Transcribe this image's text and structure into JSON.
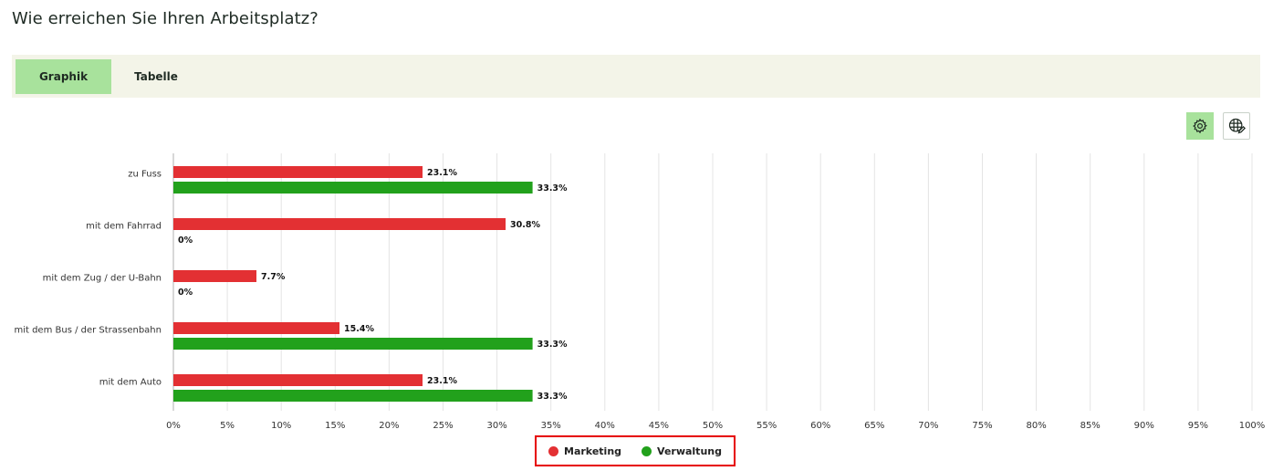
{
  "page": {
    "title": "Wie erreichen Sie Ihren Arbeitsplatz?"
  },
  "tabs": [
    {
      "label": "Graphik",
      "active": true
    },
    {
      "label": "Tabelle",
      "active": false
    }
  ],
  "toolbar": {
    "settings_icon": "gear-icon",
    "table_edit_icon": "table-edit-icon"
  },
  "chart_data": {
    "type": "bar",
    "orientation": "horizontal",
    "categories": [
      "zu Fuss",
      "mit dem Fahrrad",
      "mit dem Zug / der U-Bahn",
      "mit dem Bus / der Strassenbahn",
      "mit dem Auto"
    ],
    "series": [
      {
        "name": "Marketing",
        "color": "#e33033",
        "values": [
          23.1,
          30.8,
          7.7,
          15.4,
          23.1
        ]
      },
      {
        "name": "Verwaltung",
        "color": "#22a11c",
        "values": [
          33.3,
          0,
          0,
          33.3,
          33.3
        ]
      }
    ],
    "xlim": [
      0,
      100
    ],
    "xticks": [
      "0%",
      "5%",
      "10%",
      "15%",
      "20%",
      "25%",
      "30%",
      "35%",
      "40%",
      "45%",
      "50%",
      "55%",
      "60%",
      "65%",
      "70%",
      "75%",
      "80%",
      "85%",
      "90%",
      "95%",
      "100%"
    ],
    "value_suffix": "%",
    "grid": true,
    "legend_position": "bottom-center"
  }
}
